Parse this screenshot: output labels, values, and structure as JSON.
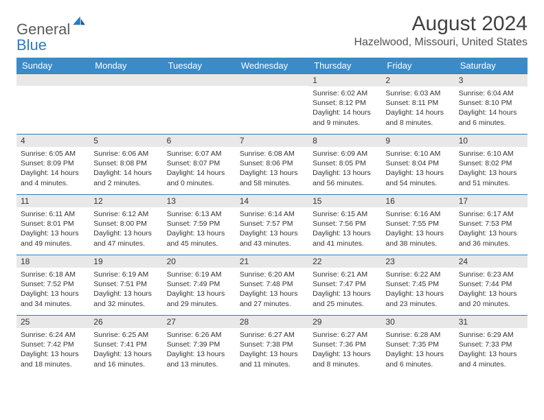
{
  "logo": {
    "text1": "General",
    "text2": "Blue"
  },
  "title": "August 2024",
  "location": "Hazelwood, Missouri, United States",
  "days_of_week": [
    "Sunday",
    "Monday",
    "Tuesday",
    "Wednesday",
    "Thursday",
    "Friday",
    "Saturday"
  ],
  "colors": {
    "header_bg": "#3b8bc8",
    "header_text": "#ffffff",
    "daynum_bg": "#e8e8e8",
    "border": "#2b7bbf",
    "text": "#333333"
  },
  "weeks": [
    [
      null,
      null,
      null,
      null,
      {
        "n": "1",
        "sr": "6:02 AM",
        "ss": "8:12 PM",
        "dl": "14 hours and 9 minutes."
      },
      {
        "n": "2",
        "sr": "6:03 AM",
        "ss": "8:11 PM",
        "dl": "14 hours and 8 minutes."
      },
      {
        "n": "3",
        "sr": "6:04 AM",
        "ss": "8:10 PM",
        "dl": "14 hours and 6 minutes."
      }
    ],
    [
      {
        "n": "4",
        "sr": "6:05 AM",
        "ss": "8:09 PM",
        "dl": "14 hours and 4 minutes."
      },
      {
        "n": "5",
        "sr": "6:06 AM",
        "ss": "8:08 PM",
        "dl": "14 hours and 2 minutes."
      },
      {
        "n": "6",
        "sr": "6:07 AM",
        "ss": "8:07 PM",
        "dl": "14 hours and 0 minutes."
      },
      {
        "n": "7",
        "sr": "6:08 AM",
        "ss": "8:06 PM",
        "dl": "13 hours and 58 minutes."
      },
      {
        "n": "8",
        "sr": "6:09 AM",
        "ss": "8:05 PM",
        "dl": "13 hours and 56 minutes."
      },
      {
        "n": "9",
        "sr": "6:10 AM",
        "ss": "8:04 PM",
        "dl": "13 hours and 54 minutes."
      },
      {
        "n": "10",
        "sr": "6:10 AM",
        "ss": "8:02 PM",
        "dl": "13 hours and 51 minutes."
      }
    ],
    [
      {
        "n": "11",
        "sr": "6:11 AM",
        "ss": "8:01 PM",
        "dl": "13 hours and 49 minutes."
      },
      {
        "n": "12",
        "sr": "6:12 AM",
        "ss": "8:00 PM",
        "dl": "13 hours and 47 minutes."
      },
      {
        "n": "13",
        "sr": "6:13 AM",
        "ss": "7:59 PM",
        "dl": "13 hours and 45 minutes."
      },
      {
        "n": "14",
        "sr": "6:14 AM",
        "ss": "7:57 PM",
        "dl": "13 hours and 43 minutes."
      },
      {
        "n": "15",
        "sr": "6:15 AM",
        "ss": "7:56 PM",
        "dl": "13 hours and 41 minutes."
      },
      {
        "n": "16",
        "sr": "6:16 AM",
        "ss": "7:55 PM",
        "dl": "13 hours and 38 minutes."
      },
      {
        "n": "17",
        "sr": "6:17 AM",
        "ss": "7:53 PM",
        "dl": "13 hours and 36 minutes."
      }
    ],
    [
      {
        "n": "18",
        "sr": "6:18 AM",
        "ss": "7:52 PM",
        "dl": "13 hours and 34 minutes."
      },
      {
        "n": "19",
        "sr": "6:19 AM",
        "ss": "7:51 PM",
        "dl": "13 hours and 32 minutes."
      },
      {
        "n": "20",
        "sr": "6:19 AM",
        "ss": "7:49 PM",
        "dl": "13 hours and 29 minutes."
      },
      {
        "n": "21",
        "sr": "6:20 AM",
        "ss": "7:48 PM",
        "dl": "13 hours and 27 minutes."
      },
      {
        "n": "22",
        "sr": "6:21 AM",
        "ss": "7:47 PM",
        "dl": "13 hours and 25 minutes."
      },
      {
        "n": "23",
        "sr": "6:22 AM",
        "ss": "7:45 PM",
        "dl": "13 hours and 23 minutes."
      },
      {
        "n": "24",
        "sr": "6:23 AM",
        "ss": "7:44 PM",
        "dl": "13 hours and 20 minutes."
      }
    ],
    [
      {
        "n": "25",
        "sr": "6:24 AM",
        "ss": "7:42 PM",
        "dl": "13 hours and 18 minutes."
      },
      {
        "n": "26",
        "sr": "6:25 AM",
        "ss": "7:41 PM",
        "dl": "13 hours and 16 minutes."
      },
      {
        "n": "27",
        "sr": "6:26 AM",
        "ss": "7:39 PM",
        "dl": "13 hours and 13 minutes."
      },
      {
        "n": "28",
        "sr": "6:27 AM",
        "ss": "7:38 PM",
        "dl": "13 hours and 11 minutes."
      },
      {
        "n": "29",
        "sr": "6:27 AM",
        "ss": "7:36 PM",
        "dl": "13 hours and 8 minutes."
      },
      {
        "n": "30",
        "sr": "6:28 AM",
        "ss": "7:35 PM",
        "dl": "13 hours and 6 minutes."
      },
      {
        "n": "31",
        "sr": "6:29 AM",
        "ss": "7:33 PM",
        "dl": "13 hours and 4 minutes."
      }
    ]
  ],
  "labels": {
    "sunrise": "Sunrise:",
    "sunset": "Sunset:",
    "daylight": "Daylight:"
  }
}
